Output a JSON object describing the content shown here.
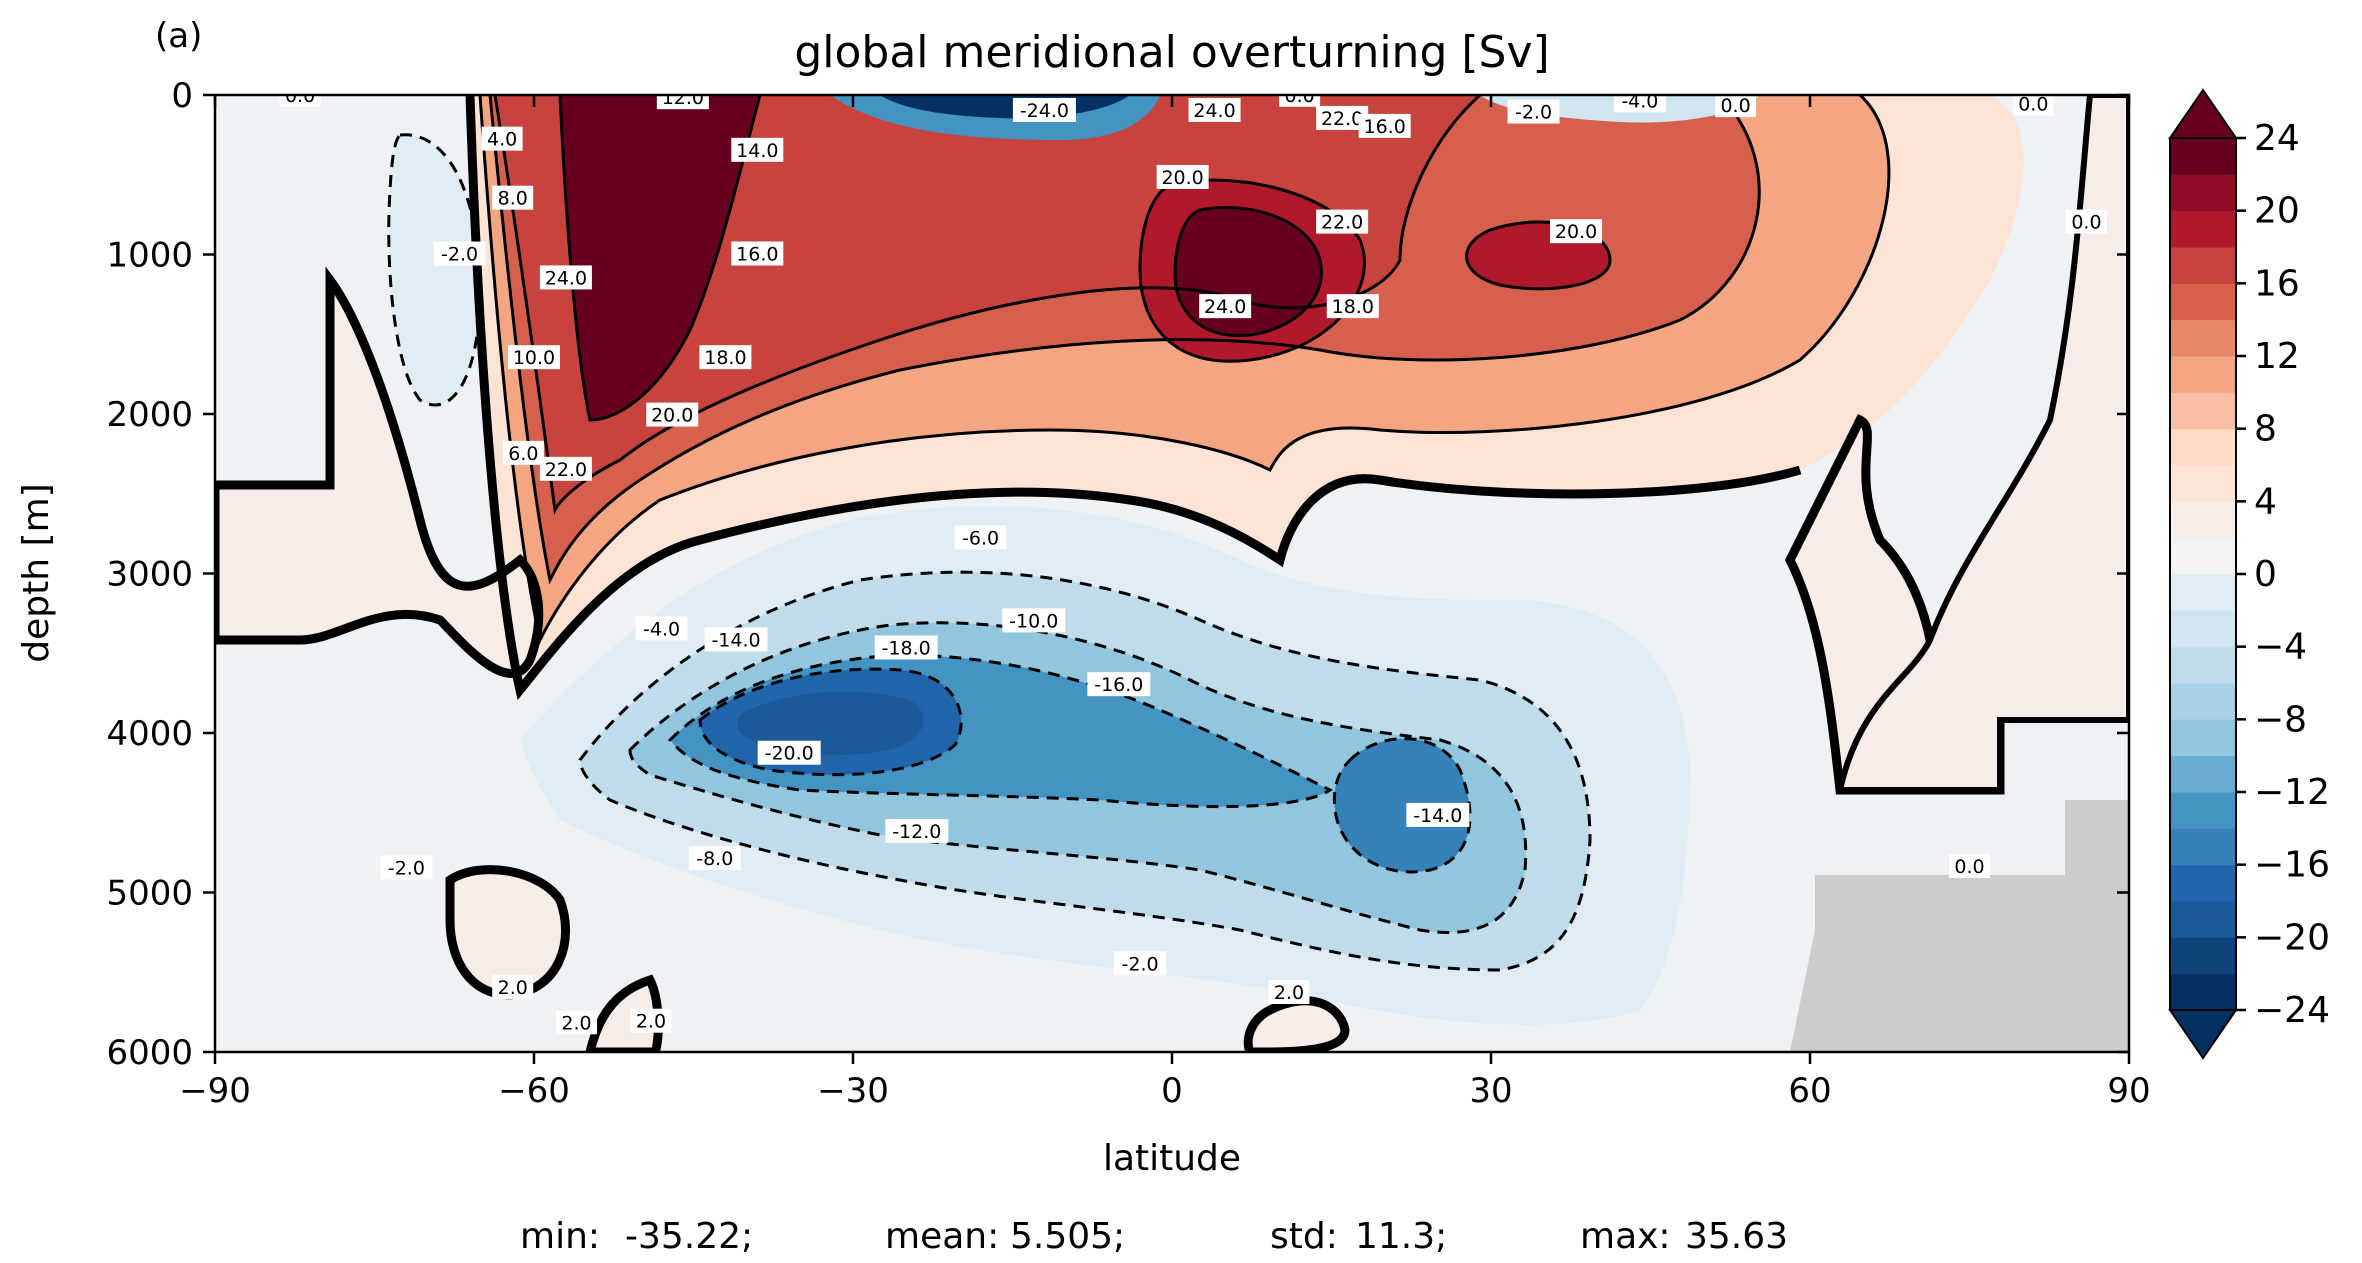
{
  "chart_data": {
    "type": "contour",
    "panel_label": "(a)",
    "title": "global meridional overturning [Sv]",
    "xlabel": "latitude",
    "ylabel": "depth [m]",
    "xlim": [
      -90,
      90
    ],
    "ylim": [
      6000,
      0
    ],
    "x_ticks": [
      -90,
      -60,
      -30,
      0,
      30,
      60,
      90
    ],
    "x_tick_labels": [
      "−90",
      "−60",
      "−30",
      "0",
      "30",
      "60",
      "90"
    ],
    "y_ticks": [
      0,
      1000,
      2000,
      3000,
      4000,
      5000,
      6000
    ],
    "y_tick_labels": [
      "0",
      "1000",
      "2000",
      "3000",
      "4000",
      "5000",
      "6000"
    ],
    "colorbar": {
      "min": -24,
      "max": 24,
      "step": 2,
      "ticks": [
        24,
        20,
        16,
        12,
        8,
        4,
        0,
        -4,
        -8,
        -12,
        -16,
        -20,
        -24
      ],
      "tick_labels": [
        "24",
        "20",
        "16",
        "12",
        "8",
        "4",
        "0",
        "−4",
        "−8",
        "−12",
        "−16",
        "−20",
        "−24"
      ],
      "extend": "both",
      "colors": [
        "#053061",
        "#0f437b",
        "#1b5a99",
        "#2166ac",
        "#3581ba",
        "#4393c3",
        "#6aacd0",
        "#92c5de",
        "#a9d1e5",
        "#c0dceb",
        "#d1e5f0",
        "#e0ecf4",
        "#f1f3f5",
        "#f7ede8",
        "#fbe3d6",
        "#fddbc7",
        "#f8bfa4",
        "#f4a582",
        "#e8866a",
        "#d6604d",
        "#c8433d",
        "#b2182b",
        "#8e0c25",
        "#67001f"
      ]
    },
    "gray_land_color": "#cccccc",
    "cells": [
      {
        "x": -58,
        "y": 300,
        "v": 26
      },
      {
        "x": 8,
        "y": 1000,
        "v": 26
      },
      {
        "x": 40,
        "y": 950,
        "v": 20
      },
      {
        "x": -35,
        "y": 3900,
        "v": -20
      },
      {
        "x": 18,
        "y": 4400,
        "v": -16
      },
      {
        "x": -70,
        "y": 1000,
        "v": -2
      }
    ],
    "contour_labels": [
      {
        "text": "0.0",
        "lat": -82,
        "depth": 5
      },
      {
        "text": "12.0",
        "lat": -46,
        "depth": 20
      },
      {
        "text": "-24.0",
        "lat": -12,
        "depth": 100
      },
      {
        "text": "24.0",
        "lat": 4,
        "depth": 100
      },
      {
        "text": "22.0",
        "lat": 16,
        "depth": 150
      },
      {
        "text": "0.0",
        "lat": 12,
        "depth": 5
      },
      {
        "text": "-2.0",
        "lat": 34,
        "depth": 110
      },
      {
        "text": "-4.0",
        "lat": 44,
        "depth": 40
      },
      {
        "text": "0.0",
        "lat": 53,
        "depth": 70
      },
      {
        "text": "0.0",
        "lat": 81,
        "depth": 60
      },
      {
        "text": "4.0",
        "lat": -63,
        "depth": 280
      },
      {
        "text": "8.0",
        "lat": -62,
        "depth": 650
      },
      {
        "text": "14.0",
        "lat": -39,
        "depth": 350
      },
      {
        "text": "16.0",
        "lat": 20,
        "depth": 200
      },
      {
        "text": "20.0",
        "lat": 1,
        "depth": 520
      },
      {
        "text": "22.0",
        "lat": 16,
        "depth": 800
      },
      {
        "text": "16.0",
        "lat": -39,
        "depth": 1000
      },
      {
        "text": "20.0",
        "lat": 38,
        "depth": 860
      },
      {
        "text": "-2.0",
        "lat": -67,
        "depth": 1000
      },
      {
        "text": "24.0",
        "lat": -57,
        "depth": 1150
      },
      {
        "text": "0.0",
        "lat": 86,
        "depth": 800
      },
      {
        "text": "24.0",
        "lat": 5,
        "depth": 1330
      },
      {
        "text": "18.0",
        "lat": 17,
        "depth": 1330
      },
      {
        "text": "10.0",
        "lat": -60,
        "depth": 1650
      },
      {
        "text": "18.0",
        "lat": -42,
        "depth": 1650
      },
      {
        "text": "20.0",
        "lat": -47,
        "depth": 2010
      },
      {
        "text": "6.0",
        "lat": -61,
        "depth": 2250
      },
      {
        "text": "22.0",
        "lat": -57,
        "depth": 2350
      },
      {
        "text": "-6.0",
        "lat": -18,
        "depth": 2780
      },
      {
        "text": "-4.0",
        "lat": -48,
        "depth": 3350
      },
      {
        "text": "-14.0",
        "lat": -41,
        "depth": 3420
      },
      {
        "text": "-10.0",
        "lat": -13,
        "depth": 3300
      },
      {
        "text": "-18.0",
        "lat": -25,
        "depth": 3470
      },
      {
        "text": "-16.0",
        "lat": -5,
        "depth": 3700
      },
      {
        "text": "-20.0",
        "lat": -36,
        "depth": 4130
      },
      {
        "text": "-14.0",
        "lat": 25,
        "depth": 4520
      },
      {
        "text": "-12.0",
        "lat": -24,
        "depth": 4620
      },
      {
        "text": "-8.0",
        "lat": -43,
        "depth": 4790
      },
      {
        "text": "-2.0",
        "lat": -72,
        "depth": 4850
      },
      {
        "text": "0.0",
        "lat": 75,
        "depth": 4840
      },
      {
        "text": "-2.0",
        "lat": -3,
        "depth": 5450
      },
      {
        "text": "2.0",
        "lat": -62,
        "depth": 5600
      },
      {
        "text": "2.0",
        "lat": 11,
        "depth": 5630
      },
      {
        "text": "2.0",
        "lat": -56,
        "depth": 5820
      },
      {
        "text": "2.0",
        "lat": -49,
        "depth": 5810
      }
    ],
    "stats": {
      "min_label": "min:",
      "min": "-35.22;",
      "mean_label": "mean:",
      "mean": "5.505;",
      "std_label": "std:",
      "std": "11.3;",
      "max_label": "max:",
      "max": "35.63"
    }
  }
}
